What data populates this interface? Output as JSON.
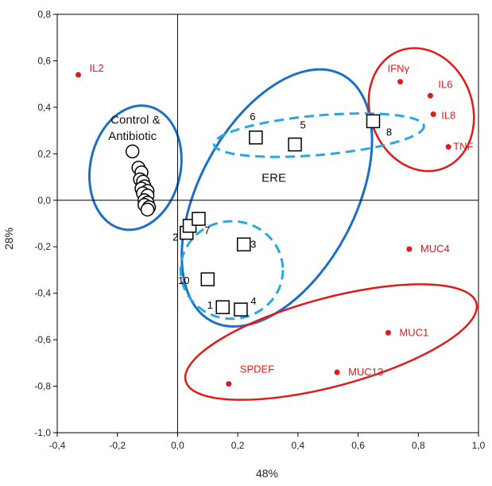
{
  "chart_data": {
    "type": "scatter",
    "xlabel": "48%",
    "ylabel": "28%",
    "xlim": [
      -0.4,
      1.0
    ],
    "ylim": [
      -1.0,
      0.8
    ],
    "xticks": [
      "-0,4",
      "-0,2",
      "0,0",
      "0,2",
      "0,4",
      "0,6",
      "0,8",
      "1,0"
    ],
    "yticks": [
      "0,8",
      "0,6",
      "0,4",
      "0,2",
      "0,0",
      "-0,2",
      "-0,4",
      "-0,6",
      "-0,8",
      "-1,0"
    ],
    "grid": false,
    "colors": {
      "variables": "#e01a1a",
      "blue_ellipse": "#1b6fc4",
      "dashed_ellipse": "#29a8e0",
      "red_ellipse": "#e01a1a",
      "markers": "#000000"
    },
    "series": [
      {
        "marker": "circle",
        "points": [
          {
            "x": -0.15,
            "y": 0.21
          },
          {
            "x": -0.13,
            "y": 0.14
          },
          {
            "x": -0.12,
            "y": 0.12
          },
          {
            "x": -0.125,
            "y": 0.09
          },
          {
            "x": -0.115,
            "y": 0.08
          },
          {
            "x": -0.11,
            "y": 0.06
          },
          {
            "x": -0.12,
            "y": 0.05
          },
          {
            "x": -0.1,
            "y": 0.04
          },
          {
            "x": -0.115,
            "y": 0.03
          },
          {
            "x": -0.1,
            "y": 0.02
          },
          {
            "x": -0.11,
            "y": 0.0
          },
          {
            "x": -0.1,
            "y": -0.01
          },
          {
            "x": -0.11,
            "y": -0.02
          },
          {
            "x": -0.095,
            "y": -0.03
          },
          {
            "x": -0.1,
            "y": -0.04
          }
        ]
      },
      {
        "marker": "square",
        "points": [
          {
            "x": 0.15,
            "y": -0.46,
            "label": "1"
          },
          {
            "x": 0.03,
            "y": -0.14,
            "label": "2"
          },
          {
            "x": 0.22,
            "y": -0.19,
            "label": "3"
          },
          {
            "x": 0.21,
            "y": -0.47,
            "label": "4"
          },
          {
            "x": 0.39,
            "y": 0.24,
            "label": "5"
          },
          {
            "x": 0.26,
            "y": 0.27,
            "label": "6"
          },
          {
            "x": 0.04,
            "y": -0.11,
            "label": "7"
          },
          {
            "x": 0.65,
            "y": 0.34,
            "label": "8"
          },
          {
            "x": 0.07,
            "y": -0.08,
            "label": ""
          },
          {
            "x": 0.1,
            "y": -0.34,
            "label": "10"
          }
        ]
      },
      {
        "marker": "dot",
        "points": [
          {
            "x": -0.33,
            "y": 0.54,
            "label": "IL2"
          },
          {
            "x": 0.74,
            "y": 0.51,
            "label": "IFNγ"
          },
          {
            "x": 0.84,
            "y": 0.45,
            "label": "IL6"
          },
          {
            "x": 0.85,
            "y": 0.37,
            "label": "IL8"
          },
          {
            "x": 0.9,
            "y": 0.23,
            "label": "TNF"
          },
          {
            "x": 0.77,
            "y": -0.21,
            "label": "MUC4"
          },
          {
            "x": 0.7,
            "y": -0.57,
            "label": "MUC1"
          },
          {
            "x": 0.53,
            "y": -0.74,
            "label": "MUC13"
          },
          {
            "x": 0.17,
            "y": -0.79,
            "label": "SPDEF"
          }
        ]
      }
    ],
    "ellipses": [
      {
        "style": "blue",
        "cx": -0.14,
        "cy": 0.14,
        "rx": 0.15,
        "ry": 0.27,
        "angle": 12
      },
      {
        "style": "blue",
        "cx": 0.33,
        "cy": 0.01,
        "rx": 0.26,
        "ry": 0.6,
        "angle": 28
      },
      {
        "style": "red",
        "cx": 0.81,
        "cy": 0.39,
        "rx": 0.17,
        "ry": 0.27,
        "angle": -20
      },
      {
        "style": "red",
        "cx": 0.51,
        "cy": -0.61,
        "rx": 0.5,
        "ry": 0.19,
        "angle": -15
      },
      {
        "style": "dashed",
        "cx": 0.47,
        "cy": 0.28,
        "rx": 0.35,
        "ry": 0.085,
        "angle": -5
      },
      {
        "style": "dashed",
        "cx": 0.18,
        "cy": -0.3,
        "rx": 0.17,
        "ry": 0.21,
        "angle": 0
      }
    ],
    "annotations": [
      {
        "text": "Control &",
        "x": -0.14,
        "y": 0.33
      },
      {
        "text": "Antibiotic",
        "x": -0.15,
        "y": 0.26
      },
      {
        "text": "ERE",
        "x": 0.32,
        "y": 0.08
      }
    ]
  }
}
